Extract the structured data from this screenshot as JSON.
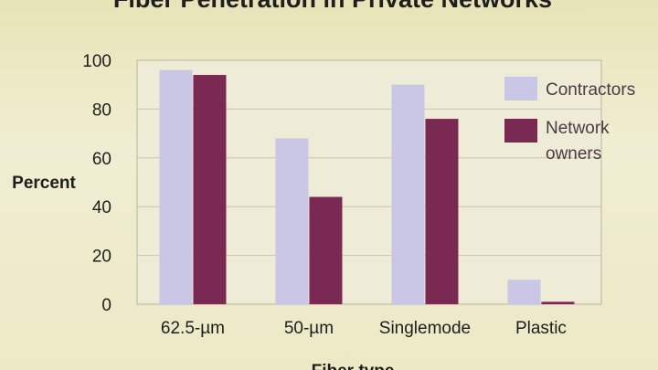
{
  "chart_data": {
    "type": "bar",
    "title": "Fiber Penetration in Private Networks",
    "xlabel": "Fiber type",
    "ylabel": "Percent",
    "ylim": [
      0,
      100
    ],
    "yticks": [
      0,
      20,
      40,
      60,
      80,
      100
    ],
    "grid": true,
    "legend_position": "top-right",
    "categories": [
      "62.5-µm",
      "50-µm",
      "Singlemode",
      "Plastic"
    ],
    "series": [
      {
        "name": "Contractors",
        "color": "#c9c6e6",
        "values": [
          96,
          68,
          90,
          10
        ]
      },
      {
        "name": "Network owners",
        "color": "#7a2a52",
        "values": [
          94,
          44,
          76,
          1
        ]
      }
    ]
  },
  "legend": {
    "contractors": "Contractors",
    "owners_line1": "Network",
    "owners_line2": "owners"
  }
}
